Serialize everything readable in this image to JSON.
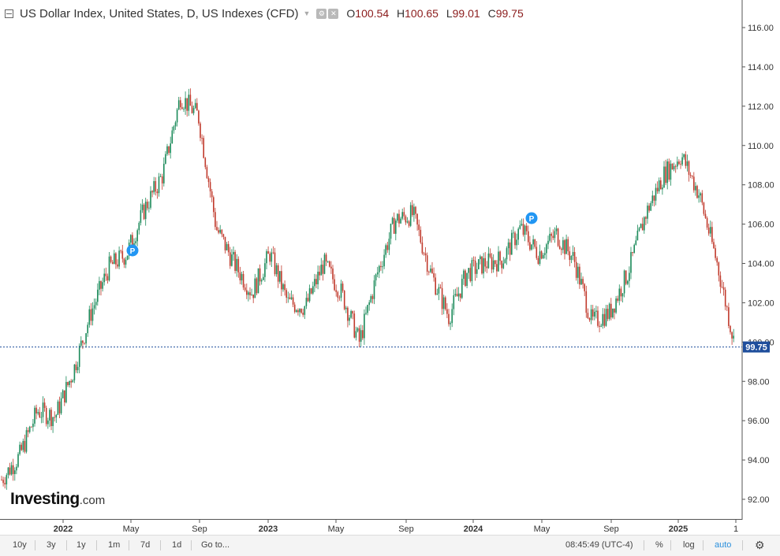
{
  "legend": {
    "title": "US Dollar Index, United States, D, US Indexes (CFD)",
    "o_label": "O",
    "o": "100.54",
    "h_label": "H",
    "h": "100.65",
    "l_label": "L",
    "l": "99.01",
    "c_label": "C",
    "c": "99.75"
  },
  "logo": {
    "brand": "Investing",
    "suffix": ".com"
  },
  "price_tag": "99.75",
  "marker_label": "P",
  "toolbar": {
    "periods": [
      "10y",
      "3y",
      "1y",
      "1m",
      "7d",
      "1d"
    ],
    "goto": "Go to...",
    "time": "08:45:49 (UTC-4)",
    "percent": "%",
    "log": "log",
    "auto": "auto"
  },
  "colors": {
    "up": "#1b8a5a",
    "down": "#c0392b",
    "price_line": "#1f4e9c",
    "marker": "#2196f3"
  },
  "chart_data": {
    "type": "candlestick",
    "x": [
      "2021-11",
      "2021-12",
      "2022-01",
      "2022-02",
      "2022-03",
      "2022-04",
      "2022-05",
      "2022-06",
      "2022-07",
      "2022-08",
      "2022-09",
      "2022-10",
      "2022-11",
      "2022-12",
      "2023-01",
      "2023-02",
      "2023-03",
      "2023-04",
      "2023-05",
      "2023-06",
      "2023-07",
      "2023-08",
      "2023-09",
      "2023-10",
      "2023-11",
      "2023-12",
      "2024-01",
      "2024-02",
      "2024-03",
      "2024-04",
      "2024-05",
      "2024-06",
      "2024-07",
      "2024-08",
      "2024-09",
      "2024-10",
      "2024-11",
      "2024-12",
      "2025-01",
      "2025-02",
      "2025-03",
      "2025-04"
    ],
    "values": [
      93.0,
      94.2,
      96.5,
      96.2,
      98.5,
      101.5,
      103.8,
      104.5,
      106.8,
      108.5,
      112.5,
      111.5,
      105.8,
      104.0,
      102.5,
      104.5,
      102.0,
      101.8,
      104.0,
      102.5,
      100.0,
      103.5,
      106.2,
      106.5,
      103.5,
      101.3,
      103.5,
      104.0,
      104.2,
      105.8,
      104.5,
      105.5,
      104.2,
      101.0,
      101.5,
      103.5,
      106.5,
      108.5,
      109.5,
      107.5,
      104.0,
      99.75
    ],
    "ylim": [
      91,
      117
    ],
    "yticks": [
      "116.00",
      "114.00",
      "112.00",
      "110.00",
      "108.00",
      "106.00",
      "104.00",
      "102.00",
      "100.00",
      "98.00",
      "96.00",
      "94.00",
      "92.00"
    ],
    "xticks": [
      "2022",
      "May",
      "Sep",
      "2023",
      "May",
      "Sep",
      "2024",
      "May",
      "Sep",
      "2025",
      "1"
    ],
    "last": 99.75,
    "markers": [
      {
        "x": "2022-05",
        "label": "P"
      },
      {
        "x": "2024-05",
        "label": "P"
      }
    ]
  }
}
